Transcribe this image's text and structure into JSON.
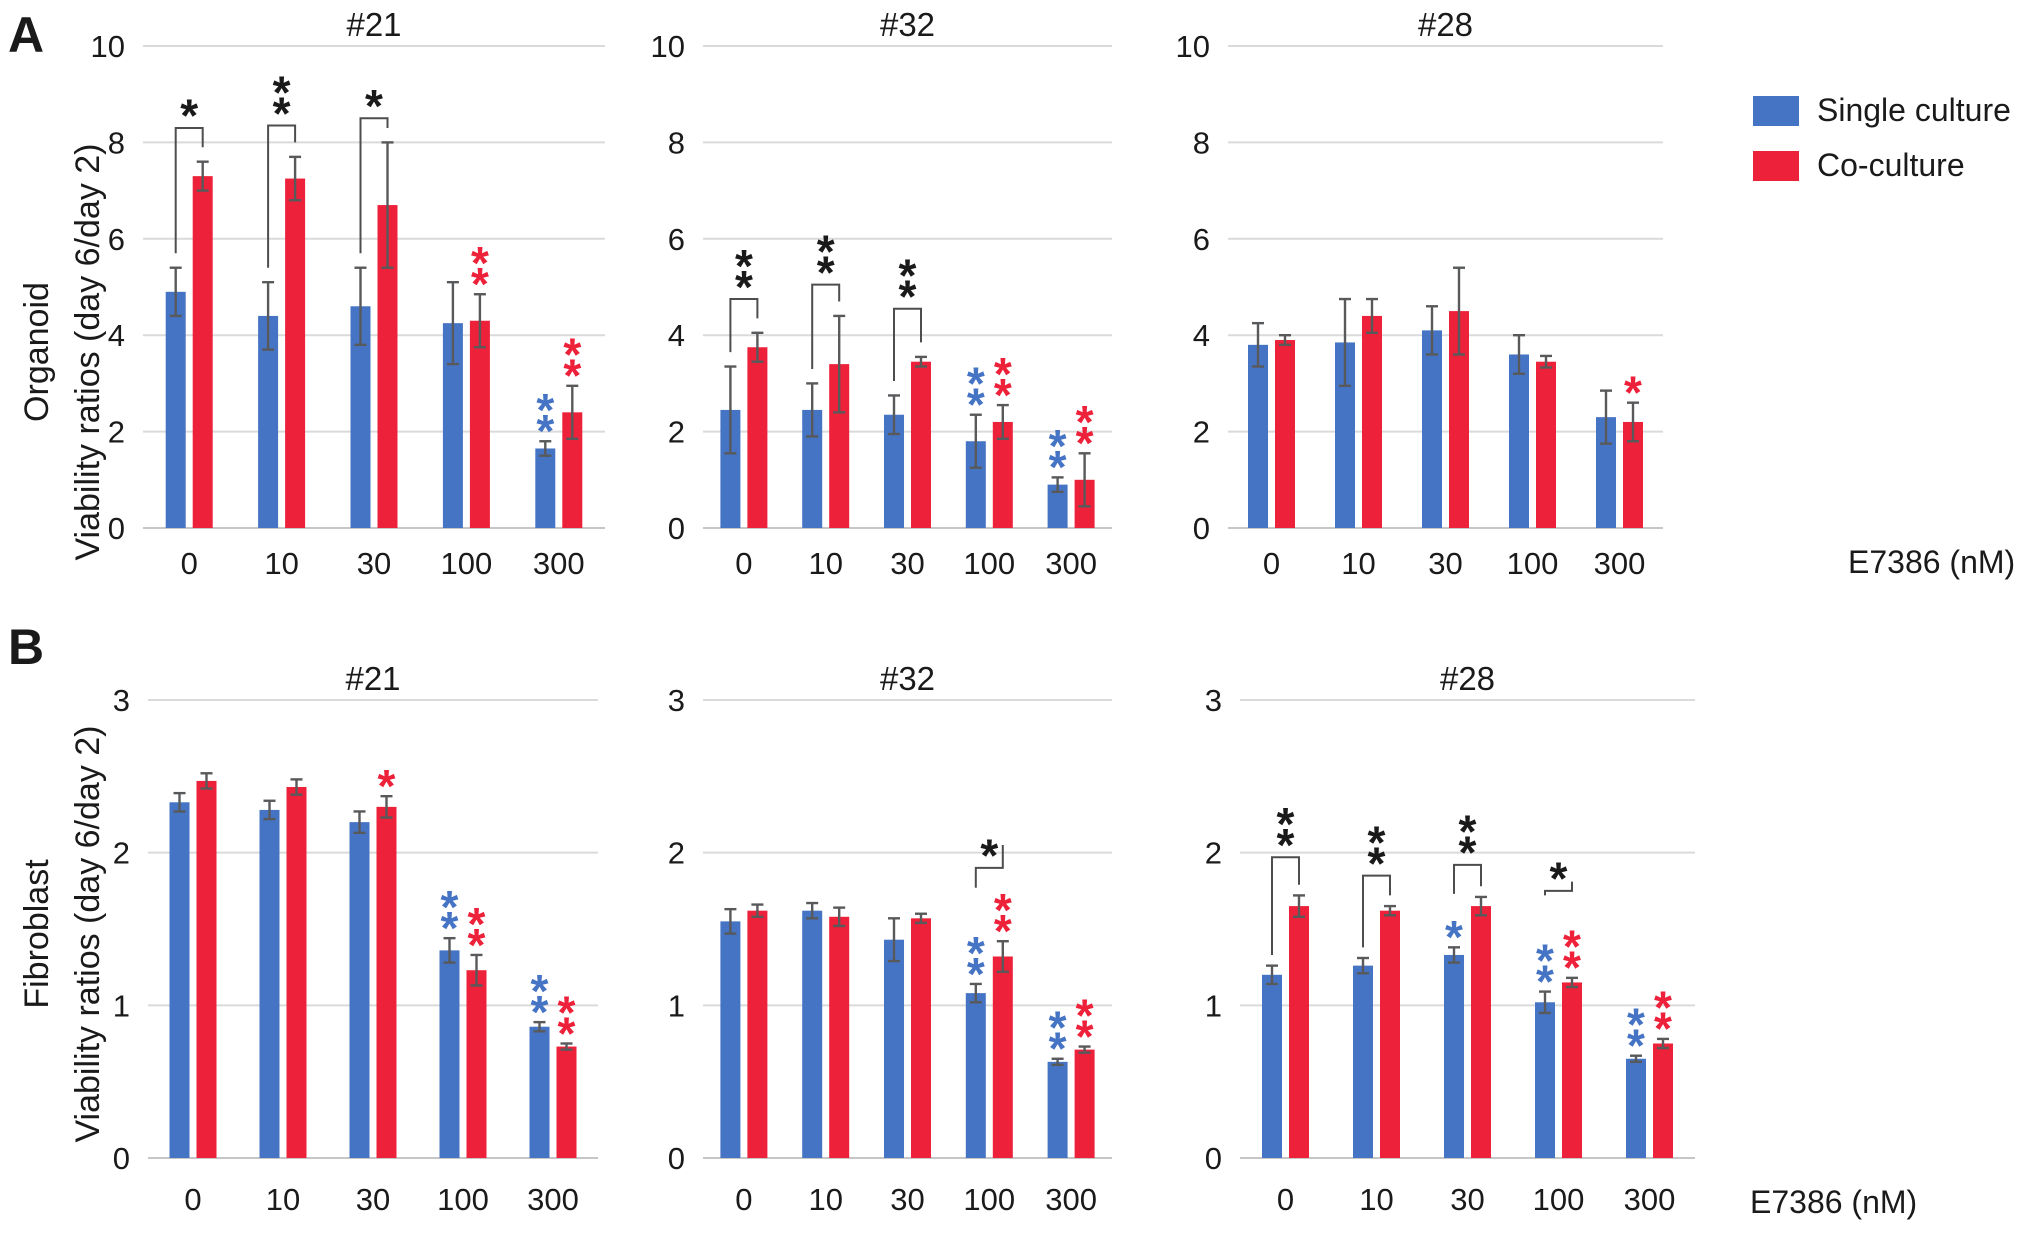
{
  "figure": {
    "panel_a_letter": "A",
    "panel_b_letter": "B",
    "x_axis_label": "E7386 (nM)",
    "row_a_ylabel_line1": "Organoid",
    "row_a_ylabel_line2": "Viability ratios (day 6/day 2)",
    "row_b_ylabel_line1": "Fibroblast",
    "row_b_ylabel_line2": "Viability ratios (day 6/day 2)",
    "legend": {
      "single_label": "Single culture",
      "co_label": "Co-culture"
    },
    "colors": {
      "single": "#4674C5",
      "co": "#ED2139",
      "black_star": "#1a1a1a",
      "bracket": "#4d4d4d",
      "grid": "#DADADA",
      "baseline": "#C6C6C6",
      "error_bar": "#58595B",
      "text": "#1a1a1a"
    }
  },
  "chart_data": {
    "type": "bar",
    "categories": [
      "0",
      "10",
      "30",
      "100",
      "300"
    ],
    "series_names": [
      "Single culture",
      "Co-culture"
    ],
    "x_unit": "E7386 (nM)",
    "grid": true,
    "legend_position": "top-right",
    "rows": [
      {
        "row": "A",
        "ylabel": "Organoid Viability ratios (day 6/day 2)",
        "ylim": [
          0,
          10
        ],
        "yticks": [
          0,
          2,
          4,
          6,
          8,
          10
        ],
        "panels": [
          {
            "title": "#21",
            "single": {
              "values": [
                4.9,
                4.4,
                4.6,
                4.25,
                1.65
              ],
              "errors": [
                0.5,
                0.7,
                0.8,
                0.85,
                0.15
              ]
            },
            "co": {
              "values": [
                7.3,
                7.25,
                6.7,
                4.3,
                2.4
              ],
              "errors": [
                0.3,
                0.45,
                1.3,
                0.55,
                0.55
              ]
            },
            "sig": [
              {
                "at": 0,
                "type": "bracket",
                "mark": "*",
                "y": 8.3
              },
              {
                "at": 1,
                "type": "bracket",
                "mark": "**",
                "y": 8.35
              },
              {
                "at": 2,
                "type": "bracket",
                "mark": "*",
                "y": 8.5
              },
              {
                "at": 3,
                "type": "mark",
                "on": "co",
                "mark": "**"
              },
              {
                "at": 4,
                "type": "mark",
                "on": "single",
                "mark": "**"
              },
              {
                "at": 4,
                "type": "mark",
                "on": "co",
                "mark": "**"
              }
            ]
          },
          {
            "title": "#32",
            "single": {
              "values": [
                2.45,
                2.45,
                2.35,
                1.8,
                0.9
              ],
              "errors": [
                0.9,
                0.55,
                0.4,
                0.55,
                0.15
              ]
            },
            "co": {
              "values": [
                3.75,
                3.4,
                3.45,
                2.2,
                1.0
              ],
              "errors": [
                0.3,
                1.0,
                0.1,
                0.35,
                0.55
              ]
            },
            "sig": [
              {
                "at": 0,
                "type": "bracket",
                "mark": "**",
                "y": 4.75
              },
              {
                "at": 1,
                "type": "bracket",
                "mark": "**",
                "y": 5.05
              },
              {
                "at": 2,
                "type": "bracket",
                "mark": "**",
                "y": 4.55
              },
              {
                "at": 3,
                "type": "mark",
                "on": "single",
                "mark": "**"
              },
              {
                "at": 3,
                "type": "mark",
                "on": "co",
                "mark": "**"
              },
              {
                "at": 4,
                "type": "mark",
                "on": "single",
                "mark": "**"
              },
              {
                "at": 4,
                "type": "mark",
                "on": "co",
                "mark": "**"
              }
            ]
          },
          {
            "title": "#28",
            "single": {
              "values": [
                3.8,
                3.85,
                4.1,
                3.6,
                2.3
              ],
              "errors": [
                0.45,
                0.9,
                0.5,
                0.4,
                0.55
              ]
            },
            "co": {
              "values": [
                3.9,
                4.4,
                4.5,
                3.45,
                2.2
              ],
              "errors": [
                0.1,
                0.35,
                0.9,
                0.12,
                0.4
              ]
            },
            "sig": [
              {
                "at": 4,
                "type": "mark",
                "on": "co",
                "mark": "*"
              }
            ]
          }
        ]
      },
      {
        "row": "B",
        "ylabel": "Fibroblast Viability ratios (day 6/day 2)",
        "ylim": [
          0,
          3
        ],
        "yticks": [
          0,
          1,
          2,
          3
        ],
        "panels": [
          {
            "title": "#21",
            "single": {
              "values": [
                2.33,
                2.28,
                2.2,
                1.36,
                0.86
              ],
              "errors": [
                0.06,
                0.06,
                0.07,
                0.08,
                0.03
              ]
            },
            "co": {
              "values": [
                2.47,
                2.43,
                2.3,
                1.23,
                0.73
              ],
              "errors": [
                0.05,
                0.05,
                0.07,
                0.1,
                0.02
              ]
            },
            "sig": [
              {
                "at": 2,
                "type": "mark",
                "on": "co",
                "mark": "*"
              },
              {
                "at": 3,
                "type": "mark",
                "on": "single",
                "mark": "**"
              },
              {
                "at": 3,
                "type": "mark",
                "on": "co",
                "mark": "**"
              },
              {
                "at": 4,
                "type": "mark",
                "on": "single",
                "mark": "**"
              },
              {
                "at": 4,
                "type": "mark",
                "on": "co",
                "mark": "**"
              }
            ]
          },
          {
            "title": "#32",
            "single": {
              "values": [
                1.55,
                1.62,
                1.43,
                1.08,
                0.63
              ],
              "errors": [
                0.08,
                0.05,
                0.14,
                0.06,
                0.02
              ]
            },
            "co": {
              "values": [
                1.62,
                1.58,
                1.57,
                1.32,
                0.71
              ],
              "errors": [
                0.04,
                0.06,
                0.03,
                0.1,
                0.02
              ]
            },
            "sig": [
              {
                "at": 3,
                "type": "bracket",
                "mark": "*",
                "y": 1.9
              },
              {
                "at": 3,
                "type": "mark",
                "on": "single",
                "mark": "**"
              },
              {
                "at": 3,
                "type": "mark",
                "on": "co",
                "mark": "**"
              },
              {
                "at": 4,
                "type": "mark",
                "on": "single",
                "mark": "**"
              },
              {
                "at": 4,
                "type": "mark",
                "on": "co",
                "mark": "**"
              }
            ]
          },
          {
            "title": "#28",
            "single": {
              "values": [
                1.2,
                1.26,
                1.33,
                1.02,
                0.65
              ],
              "errors": [
                0.06,
                0.05,
                0.05,
                0.07,
                0.02
              ]
            },
            "co": {
              "values": [
                1.65,
                1.62,
                1.65,
                1.15,
                0.75
              ],
              "errors": [
                0.07,
                0.03,
                0.06,
                0.03,
                0.03
              ]
            },
            "sig": [
              {
                "at": 0,
                "type": "bracket",
                "mark": "**",
                "y": 1.97
              },
              {
                "at": 1,
                "type": "bracket",
                "mark": "**",
                "y": 1.85
              },
              {
                "at": 2,
                "type": "bracket",
                "mark": "**",
                "y": 1.92
              },
              {
                "at": 3,
                "type": "bracket",
                "mark": "*",
                "y": 1.75
              },
              {
                "at": 2,
                "type": "mark",
                "on": "single",
                "mark": "*"
              },
              {
                "at": 3,
                "type": "mark",
                "on": "single",
                "mark": "**"
              },
              {
                "at": 3,
                "type": "mark",
                "on": "co",
                "mark": "**"
              },
              {
                "at": 4,
                "type": "mark",
                "on": "single",
                "mark": "**"
              },
              {
                "at": 4,
                "type": "mark",
                "on": "co",
                "mark": "**"
              }
            ]
          }
        ]
      }
    ]
  }
}
